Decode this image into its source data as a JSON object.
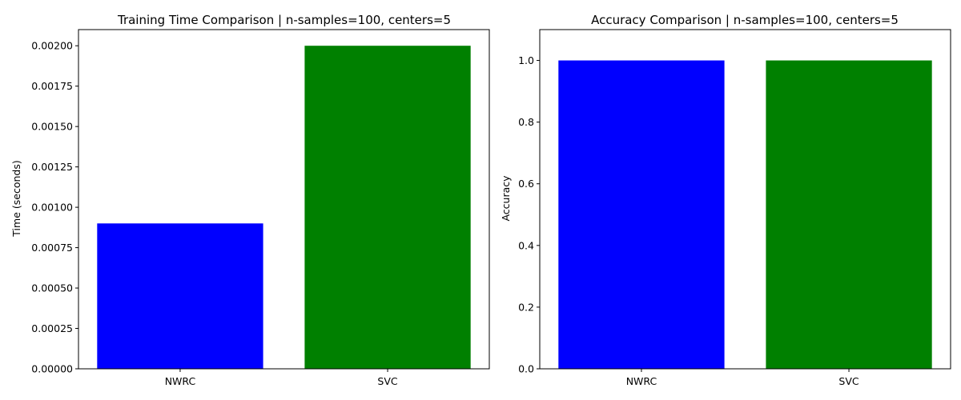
{
  "chart_data": [
    {
      "type": "bar",
      "title": "Training Time Comparison | n-samples=100, centers=5",
      "xlabel": "",
      "ylabel": "Time (seconds)",
      "categories": [
        "NWRC",
        "SVC"
      ],
      "values": [
        0.0009,
        0.002
      ],
      "colors": [
        "#0000ff",
        "#008000"
      ],
      "ylim": [
        0,
        0.0021
      ],
      "yticks": [
        0.0,
        0.00025,
        0.0005,
        0.00075,
        0.001,
        0.00125,
        0.0015,
        0.00175,
        0.002
      ],
      "ytick_labels": [
        "0.00000",
        "0.00025",
        "0.00050",
        "0.00075",
        "0.00100",
        "0.00125",
        "0.00150",
        "0.00175",
        "0.00200"
      ],
      "grid": false
    },
    {
      "type": "bar",
      "title": "Accuracy Comparison | n-samples=100, centers=5",
      "xlabel": "",
      "ylabel": "Accuracy",
      "categories": [
        "NWRC",
        "SVC"
      ],
      "values": [
        1.0,
        1.0
      ],
      "colors": [
        "#0000ff",
        "#008000"
      ],
      "ylim": [
        0,
        1.1
      ],
      "yticks": [
        0.0,
        0.2,
        0.4,
        0.6,
        0.8,
        1.0
      ],
      "ytick_labels": [
        "0.0",
        "0.2",
        "0.4",
        "0.6",
        "0.8",
        "1.0"
      ],
      "grid": false
    }
  ]
}
